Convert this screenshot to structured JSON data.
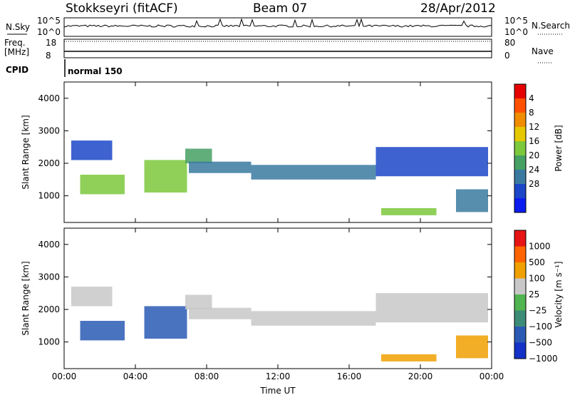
{
  "header": {
    "station": "Stokkseyri (fitACF)",
    "beam": "Beam 07",
    "date": "28/Apr/2012"
  },
  "small_panels": {
    "nsky_label": "N.Sky",
    "nsearch_label": "N.Search",
    "freq_label_1": "Freq.",
    "freq_label_2": "[MHz]",
    "nave_label": "Nave",
    "cpid_label": "CPID",
    "cpid_value": "normal 150",
    "nsky_ticks": [
      "10^5",
      "10^0"
    ],
    "nsearch_ticks": [
      "10^5",
      "10^0"
    ],
    "freq_ticks": [
      "18",
      "8"
    ],
    "nave_ticks": [
      "80",
      "0"
    ]
  },
  "chart_data": [
    {
      "type": "heatmap",
      "panel": "power",
      "ylabel": "Slant Range [km]",
      "xlabel": "",
      "x_ticks": [
        "00:00",
        "04:00",
        "08:00",
        "12:00",
        "16:00",
        "20:00",
        "00:00"
      ],
      "xlim_hours": [
        0,
        24
      ],
      "ylim": [
        180,
        4500
      ],
      "y_ticks": [
        1000,
        2000,
        3000,
        4000
      ],
      "colorbar": {
        "label": "Power [dB]",
        "ticks": [
          "4",
          "8",
          "12",
          "16",
          "20",
          "24",
          "28"
        ],
        "colors": [
          "#0a1cf0",
          "#1c46c8",
          "#3a7aa0",
          "#46a064",
          "#7cc83c",
          "#e6c800",
          "#f08c00",
          "#ff5000",
          "#e60000"
        ]
      },
      "echo_regions": [
        {
          "t0": 0.4,
          "t1": 2.7,
          "r0": 2100,
          "r1": 2700,
          "level": 1
        },
        {
          "t0": 0.9,
          "t1": 3.4,
          "r0": 1050,
          "r1": 1650,
          "level": 4
        },
        {
          "t0": 4.5,
          "t1": 6.9,
          "r0": 1100,
          "r1": 2100,
          "level": 4
        },
        {
          "t0": 6.8,
          "t1": 8.3,
          "r0": 2000,
          "r1": 2450,
          "level": 3
        },
        {
          "t0": 7.0,
          "t1": 10.5,
          "r0": 1700,
          "r1": 2050,
          "level": 2
        },
        {
          "t0": 10.5,
          "t1": 17.5,
          "r0": 1500,
          "r1": 1950,
          "level": 2
        },
        {
          "t0": 17.5,
          "t1": 23.8,
          "r0": 1600,
          "r1": 2500,
          "level": 1
        },
        {
          "t0": 17.8,
          "t1": 20.9,
          "r0": 400,
          "r1": 620,
          "level": 4
        },
        {
          "t0": 22.0,
          "t1": 23.8,
          "r0": 500,
          "r1": 1200,
          "level": 2
        }
      ]
    },
    {
      "type": "heatmap",
      "panel": "velocity",
      "ylabel": "Slant Range [km]",
      "xlabel": "Time UT",
      "x_ticks": [
        "00:00",
        "04:00",
        "08:00",
        "12:00",
        "16:00",
        "20:00",
        "00:00"
      ],
      "xlim_hours": [
        0,
        24
      ],
      "ylim": [
        180,
        4500
      ],
      "y_ticks": [
        1000,
        2000,
        3000,
        4000
      ],
      "colorbar": {
        "label": "Velocity [m s⁻¹]",
        "ticks": [
          "1000",
          "500",
          "100",
          "25",
          "−25",
          "−100",
          "−500",
          "−1000"
        ],
        "colors": [
          "#1432c8",
          "#2a5ab4",
          "#3c8c78",
          "#50b450",
          "#c8c8c8",
          "#f0a000",
          "#ff6400",
          "#e61414"
        ]
      },
      "echo_regions": [
        {
          "t0": 0.4,
          "t1": 2.7,
          "r0": 2100,
          "r1": 2700,
          "level": 4
        },
        {
          "t0": 0.9,
          "t1": 3.4,
          "r0": 1050,
          "r1": 1650,
          "level": 1
        },
        {
          "t0": 4.5,
          "t1": 6.9,
          "r0": 1100,
          "r1": 2100,
          "level": 1
        },
        {
          "t0": 6.8,
          "t1": 8.3,
          "r0": 2000,
          "r1": 2450,
          "level": 4
        },
        {
          "t0": 7.0,
          "t1": 10.5,
          "r0": 1700,
          "r1": 2050,
          "level": 4
        },
        {
          "t0": 10.5,
          "t1": 17.5,
          "r0": 1500,
          "r1": 1950,
          "level": 4
        },
        {
          "t0": 17.5,
          "t1": 23.8,
          "r0": 1600,
          "r1": 2500,
          "level": 4
        },
        {
          "t0": 17.8,
          "t1": 20.9,
          "r0": 400,
          "r1": 620,
          "level": 5
        },
        {
          "t0": 22.0,
          "t1": 23.8,
          "r0": 500,
          "r1": 1200,
          "level": 5
        }
      ]
    }
  ]
}
